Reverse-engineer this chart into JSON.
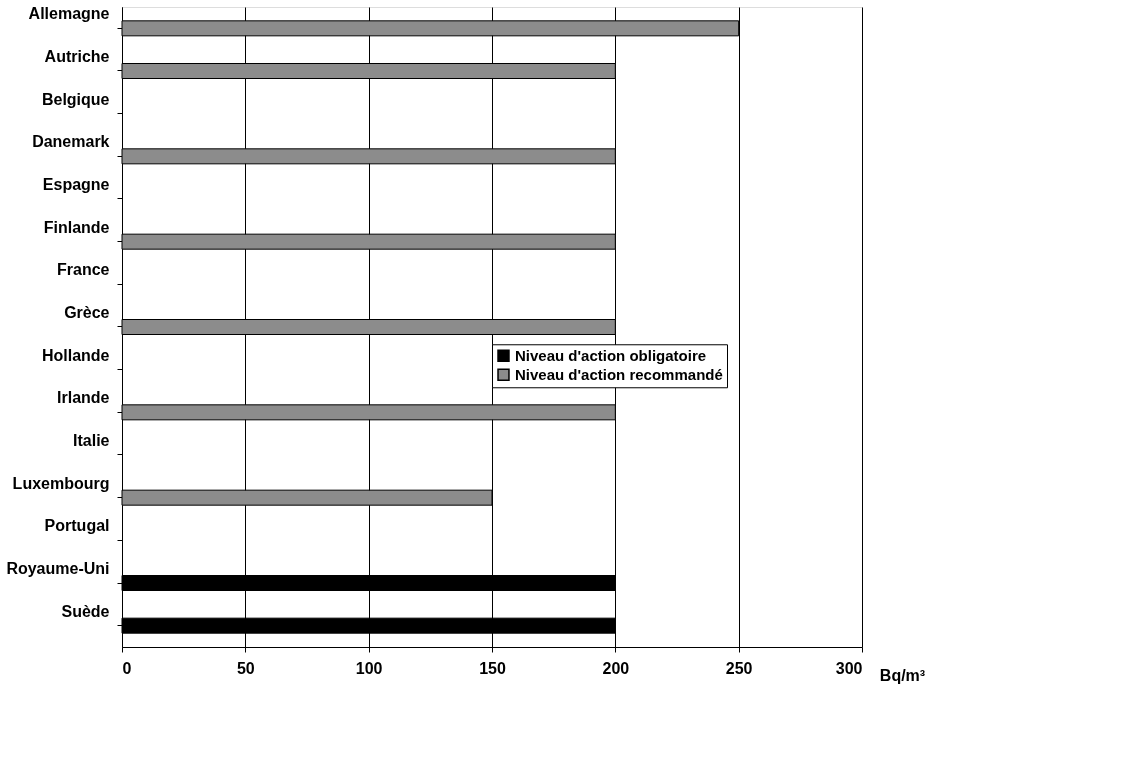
{
  "chart_data": {
    "type": "bar",
    "orientation": "horizontal",
    "xlabel": "Bq/m³",
    "categories": [
      "Allemagne",
      "Autriche",
      "Belgique",
      "Danemark",
      "Espagne",
      "Finlande",
      "France",
      "Grèce",
      "Hollande",
      "Irlande",
      "Italie",
      "Luxembourg",
      "Portugal",
      "Royaume-Uni",
      "Suède"
    ],
    "series": [
      {
        "name": "Niveau d'action obligatoire",
        "color": "#000000",
        "values": [
          null,
          null,
          null,
          null,
          null,
          null,
          null,
          null,
          null,
          null,
          null,
          null,
          null,
          200,
          200
        ]
      },
      {
        "name": "Niveau d'action recommandé",
        "color": "#8c8c8c",
        "values": [
          250,
          200,
          null,
          200,
          null,
          200,
          null,
          200,
          null,
          200,
          null,
          150,
          null,
          null,
          null
        ]
      }
    ],
    "xlim": [
      0,
      300
    ],
    "xticks": [
      0,
      50,
      100,
      150,
      200,
      250,
      300
    ],
    "grid": "x",
    "legend": "right"
  }
}
